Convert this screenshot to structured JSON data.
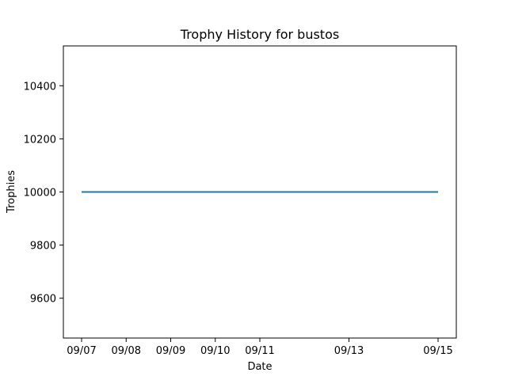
{
  "chart_data": {
    "type": "line",
    "title": "Trophy History for bustos",
    "xlabel": "Date",
    "ylabel": "Trophies",
    "x_ticks": [
      "09/07",
      "09/08",
      "09/09",
      "09/10",
      "09/11",
      "09/13",
      "09/15"
    ],
    "y_ticks": [
      9600,
      9800,
      10000,
      10200,
      10400
    ],
    "ylim": [
      9450,
      10550
    ],
    "grid": false,
    "legend": "none",
    "series": [
      {
        "color": "#1f77b4",
        "x": [
          "09/07",
          "09/08",
          "09/09",
          "09/10",
          "09/11",
          "09/13",
          "09/15"
        ],
        "values": [
          10000,
          10000,
          10000,
          10000,
          10000,
          10000,
          10000
        ]
      }
    ]
  }
}
